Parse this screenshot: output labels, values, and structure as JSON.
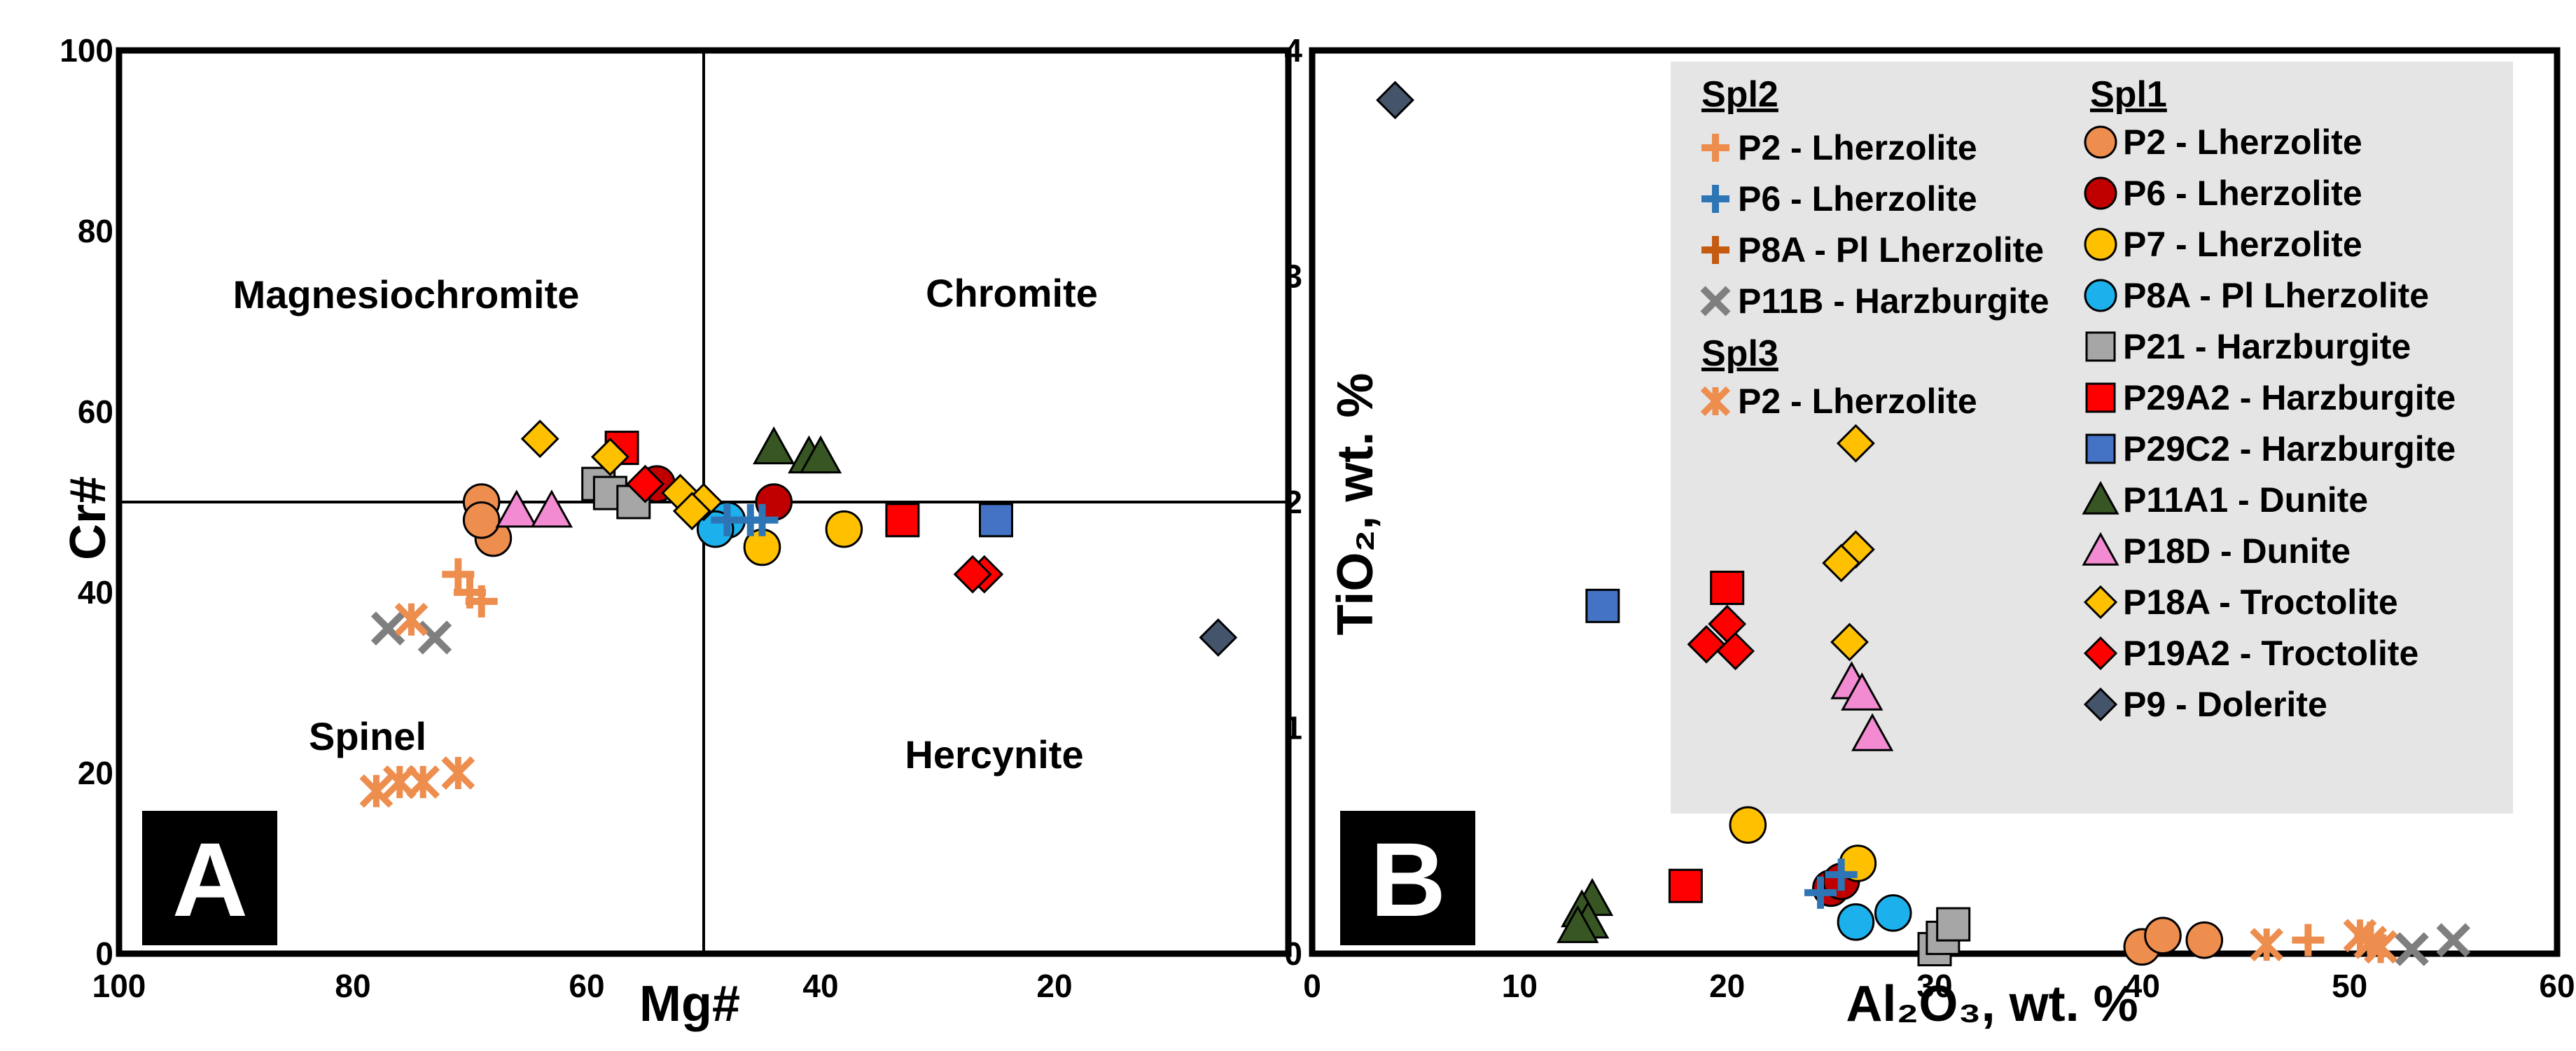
{
  "colors": {
    "P2": "#ED8D4E",
    "P6": "#C00000",
    "P7": "#FFC000",
    "P8A": "#1CB1EC",
    "P21": "#A6A6A6",
    "P29A2": "#FF0000",
    "P29C2": "#4472C4",
    "P11A1": "#375623",
    "P18D": "#F28BD1",
    "P18A": "#FFC000",
    "P19A2": "#FF0000",
    "P9": "#44546A",
    "P6cross": "#2E75B6",
    "P8Across": "#C55A11",
    "P11Bcross": "#7F7F7F"
  },
  "chart_data": [
    {
      "id": "A",
      "panel_label": "A",
      "type": "scatter",
      "xlabel": "Mg#",
      "ylabel": "Cr#",
      "xlim": [
        100,
        0
      ],
      "ylim": [
        0,
        100
      ],
      "x_ticks": [
        "100",
        "80",
        "60",
        "40",
        "20"
      ],
      "y_ticks": [
        "0",
        "20",
        "40",
        "60",
        "80",
        "100"
      ],
      "divider_x": 50,
      "divider_y": 50,
      "fields": [
        "Magnesiochromite",
        "Chromite",
        "Spinel",
        "Hercynite"
      ],
      "series": [
        {
          "name": "P2 - Lherzolite (Spl1)",
          "marker": "circle",
          "color": "P2",
          "points": [
            [
              69,
              50
            ],
            [
              68,
              46
            ],
            [
              69,
              48
            ]
          ]
        },
        {
          "name": "P6 - Lherzolite (Spl1)",
          "marker": "circle",
          "color": "P6",
          "points": [
            [
              44,
              50
            ],
            [
              54,
              52
            ]
          ]
        },
        {
          "name": "P7 - Lherzolite (Spl1)",
          "marker": "circle",
          "color": "P7",
          "points": [
            [
              38,
              47
            ],
            [
              45,
              45
            ]
          ]
        },
        {
          "name": "P8A - Pl Lherzolite (Spl1)",
          "marker": "circle",
          "color": "P8A",
          "points": [
            [
              48,
              48
            ],
            [
              49,
              47
            ]
          ]
        },
        {
          "name": "P21 - Harzburgite (Spl1)",
          "marker": "square",
          "color": "P21",
          "points": [
            [
              59,
              52
            ],
            [
              58,
              51
            ],
            [
              56,
              50
            ]
          ]
        },
        {
          "name": "P29A2 - Harzburgite (Spl1)",
          "marker": "square",
          "color": "P29A2",
          "points": [
            [
              57,
              56
            ],
            [
              33,
              48
            ]
          ]
        },
        {
          "name": "P29C2 - Harzburgite (Spl1)",
          "marker": "square",
          "color": "P29C2",
          "points": [
            [
              25,
              48
            ]
          ]
        },
        {
          "name": "P11A1 - Dunite (Spl1)",
          "marker": "triangle",
          "color": "P11A1",
          "points": [
            [
              44,
              56
            ],
            [
              41,
              55
            ],
            [
              40,
              55
            ]
          ]
        },
        {
          "name": "P18D - Dunite (Spl1)",
          "marker": "triangle",
          "color": "P18D",
          "points": [
            [
              66,
              49
            ],
            [
              63,
              49
            ]
          ]
        },
        {
          "name": "P18A - Troctolite (Spl1)",
          "marker": "diamond",
          "color": "P18A",
          "points": [
            [
              64,
              57
            ],
            [
              58,
              55
            ],
            [
              52,
              51
            ],
            [
              50,
              50
            ],
            [
              51,
              49
            ]
          ]
        },
        {
          "name": "P19A2 - Troctolite (Spl1)",
          "marker": "diamond",
          "color": "P19A2",
          "points": [
            [
              55,
              52
            ],
            [
              26,
              42
            ],
            [
              27,
              42
            ]
          ]
        },
        {
          "name": "P9 - Dolerite (Spl1)",
          "marker": "diamond",
          "color": "P9",
          "points": [
            [
              6,
              35
            ]
          ]
        },
        {
          "name": "P2 - Lherzolite (Spl2)",
          "marker": "plus",
          "color": "P2",
          "points": [
            [
              71,
              42
            ],
            [
              70,
              40
            ],
            [
              69,
              39
            ]
          ]
        },
        {
          "name": "P6 - Lherzolite (Spl2)",
          "marker": "plus",
          "color": "P6cross",
          "points": [
            [
              48,
              48
            ],
            [
              46,
              48
            ],
            [
              45,
              48
            ]
          ]
        },
        {
          "name": "P11B - Harzburgite (Spl2)",
          "marker": "x",
          "color": "P11Bcross",
          "points": [
            [
              77,
              36
            ],
            [
              73,
              35
            ]
          ]
        },
        {
          "name": "P2 - Lherzolite (Spl3)",
          "marker": "asterisk",
          "color": "P2",
          "points": [
            [
              75,
              37
            ],
            [
              78,
              18
            ],
            [
              76,
              19
            ],
            [
              74,
              19
            ],
            [
              71,
              20
            ]
          ]
        }
      ]
    },
    {
      "id": "B",
      "panel_label": "B",
      "type": "scatter",
      "xlabel": "Al₂O₃, wt. %",
      "ylabel": "TiO₂, wt. %",
      "xlim": [
        0,
        60
      ],
      "ylim": [
        0,
        4
      ],
      "x_ticks": [
        "0",
        "10",
        "20",
        "30",
        "40",
        "50",
        "60"
      ],
      "y_ticks": [
        "0",
        "1",
        "2",
        "3",
        "4"
      ],
      "series": [
        {
          "name": "P2 - Lherzolite (Spl1)",
          "marker": "circle",
          "color": "P2",
          "points": [
            [
              40,
              0.03
            ],
            [
              41,
              0.08
            ],
            [
              43,
              0.06
            ]
          ]
        },
        {
          "name": "P6 - Lherzolite (Spl1)",
          "marker": "circle",
          "color": "P6",
          "points": [
            [
              25,
              0.29
            ],
            [
              25.5,
              0.32
            ]
          ]
        },
        {
          "name": "P7 - Lherzolite (Spl1)",
          "marker": "circle",
          "color": "P7",
          "points": [
            [
              21,
              0.57
            ],
            [
              26.3,
              0.4
            ]
          ]
        },
        {
          "name": "P8A - Pl Lherzolite (Spl1)",
          "marker": "circle",
          "color": "P8A",
          "points": [
            [
              26.2,
              0.14
            ],
            [
              28,
              0.18
            ]
          ]
        },
        {
          "name": "P21 - Harzburgite (Spl1)",
          "marker": "square",
          "color": "P21",
          "points": [
            [
              30,
              0.02
            ],
            [
              30.4,
              0.07
            ],
            [
              30.9,
              0.13
            ]
          ]
        },
        {
          "name": "P29A2 - Harzburgite (Spl1)",
          "marker": "square",
          "color": "P29A2",
          "points": [
            [
              20,
              1.62
            ],
            [
              18,
              0.3
            ]
          ]
        },
        {
          "name": "P29C2 - Harzburgite (Spl1)",
          "marker": "square",
          "color": "P29C2",
          "points": [
            [
              14,
              1.54
            ]
          ]
        },
        {
          "name": "P11A1 - Dunite (Spl1)",
          "marker": "triangle",
          "color": "P11A1",
          "points": [
            [
              13.5,
              0.24
            ],
            [
              13,
              0.19
            ],
            [
              13.3,
              0.14
            ],
            [
              12.8,
              0.12
            ]
          ]
        },
        {
          "name": "P18D - Dunite (Spl1)",
          "marker": "triangle",
          "color": "P18D",
          "points": [
            [
              26,
              1.2
            ],
            [
              26.5,
              1.15
            ],
            [
              27,
              0.97
            ]
          ]
        },
        {
          "name": "P18A - Troctolite (Spl1)",
          "marker": "diamond",
          "color": "P18A",
          "points": [
            [
              26.2,
              2.26
            ],
            [
              26.2,
              1.79
            ],
            [
              25.5,
              1.73
            ],
            [
              25.9,
              1.38
            ]
          ]
        },
        {
          "name": "P19A2 - Troctolite (Spl1)",
          "marker": "diamond",
          "color": "P19A2",
          "points": [
            [
              20,
              1.46
            ],
            [
              19,
              1.37
            ],
            [
              20.4,
              1.34
            ]
          ]
        },
        {
          "name": "P9 - Dolerite (Spl1)",
          "marker": "diamond",
          "color": "P9",
          "points": [
            [
              4,
              3.78
            ]
          ]
        },
        {
          "name": "P2 - Lherzolite (Spl2)",
          "marker": "plus",
          "color": "P2",
          "points": [
            [
              48,
              0.06
            ],
            [
              51,
              0.07
            ]
          ]
        },
        {
          "name": "P6 - Lherzolite (Spl2)",
          "marker": "plus",
          "color": "P6cross",
          "points": [
            [
              24.5,
              0.27
            ],
            [
              25.5,
              0.35
            ]
          ]
        },
        {
          "name": "P11B - Harzburgite (Spl2)",
          "marker": "x",
          "color": "P11Bcross",
          "points": [
            [
              53,
              0.02
            ],
            [
              55,
              0.06
            ]
          ]
        },
        {
          "name": "P2 - Lherzolite (Spl3)",
          "marker": "asterisk",
          "color": "P2",
          "points": [
            [
              46,
              0.04
            ],
            [
              50.5,
              0.08
            ],
            [
              51,
              0.05
            ],
            [
              51.5,
              0.03
            ]
          ]
        }
      ]
    }
  ],
  "legend": {
    "spl2_heading": "Spl2",
    "spl3_heading": "Spl3",
    "spl1_heading": "Spl1",
    "spl2": [
      {
        "label": "P2 - Lherzolite",
        "marker": "plus",
        "color": "P2"
      },
      {
        "label": "P6 - Lherzolite",
        "marker": "plus",
        "color": "P6cross"
      },
      {
        "label": "P8A - Pl Lherzolite",
        "marker": "plus",
        "color": "P8Across"
      },
      {
        "label": "P11B - Harzburgite",
        "marker": "x",
        "color": "P11Bcross"
      }
    ],
    "spl3": [
      {
        "label": "P2 - Lherzolite",
        "marker": "asterisk",
        "color": "P2"
      }
    ],
    "spl1": [
      {
        "label": "P2 - Lherzolite",
        "marker": "circle",
        "color": "P2"
      },
      {
        "label": "P6 - Lherzolite",
        "marker": "circle",
        "color": "P6"
      },
      {
        "label": "P7 - Lherzolite",
        "marker": "circle",
        "color": "P7"
      },
      {
        "label": "P8A - Pl Lherzolite",
        "marker": "circle",
        "color": "P8A"
      },
      {
        "label": "P21 - Harzburgite",
        "marker": "square",
        "color": "P21"
      },
      {
        "label": "P29A2 - Harzburgite",
        "marker": "square",
        "color": "P29A2"
      },
      {
        "label": "P29C2 - Harzburgite",
        "marker": "square",
        "color": "P29C2"
      },
      {
        "label": "P11A1 - Dunite",
        "marker": "triangle",
        "color": "P11A1"
      },
      {
        "label": "P18D - Dunite",
        "marker": "triangle",
        "color": "P18D"
      },
      {
        "label": "P18A - Troctolite",
        "marker": "diamond",
        "color": "P18A"
      },
      {
        "label": "P19A2 - Troctolite",
        "marker": "diamond",
        "color": "P19A2"
      },
      {
        "label": "P9 - Dolerite",
        "marker": "diamond",
        "color": "P9"
      }
    ]
  }
}
